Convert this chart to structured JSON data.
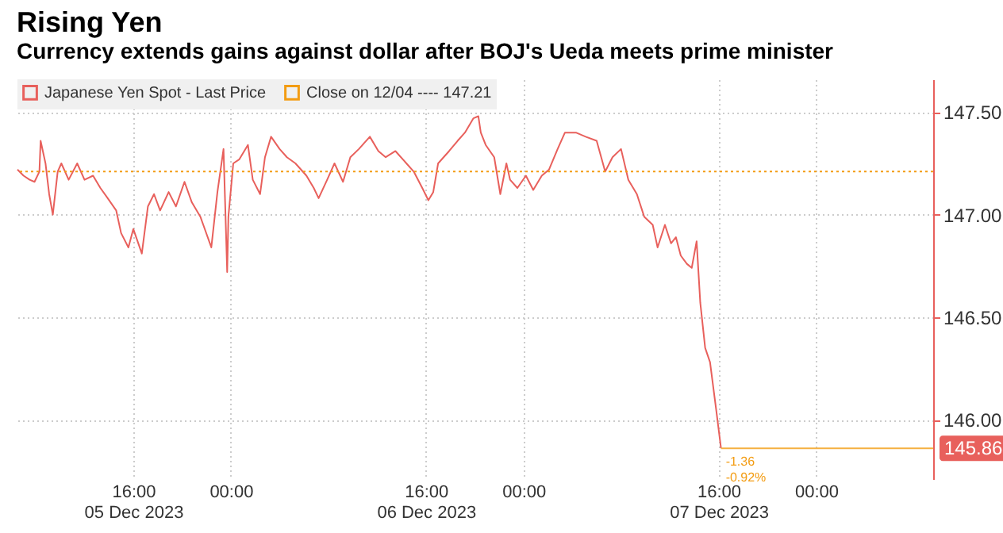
{
  "chart_data": {
    "type": "line",
    "title": "Rising Yen",
    "subtitle": "Currency extends gains against dollar after BOJ's Ueda meets prime minister",
    "x": [
      "2023-12-05T06:30",
      "2023-12-05T07:00",
      "2023-12-05T07:30",
      "2023-12-05T07:54",
      "2023-12-05T08:18",
      "2023-12-05T08:24",
      "2023-12-05T08:48",
      "2023-12-05T09:06",
      "2023-12-05T09:24",
      "2023-12-05T09:48",
      "2023-12-05T10:06",
      "2023-12-05T10:42",
      "2023-12-05T11:24",
      "2023-12-05T12:00",
      "2023-12-05T12:42",
      "2023-12-05T13:18",
      "2023-12-05T13:54",
      "2023-12-05T14:36",
      "2023-12-05T15:00",
      "2023-12-05T15:36",
      "2023-12-05T16:00",
      "2023-12-05T16:42",
      "2023-12-05T17:12",
      "2023-12-05T17:42",
      "2023-12-05T18:12",
      "2023-12-05T18:54",
      "2023-12-05T19:30",
      "2023-12-05T20:12",
      "2023-12-05T20:48",
      "2023-12-05T21:30",
      "2023-12-05T22:24",
      "2023-12-05T22:54",
      "2023-12-05T23:24",
      "2023-12-05T23:42",
      "2023-12-05T23:48",
      "2023-12-06T00:12",
      "2023-12-06T00:42",
      "2023-12-06T01:24",
      "2023-12-06T01:48",
      "2023-12-06T02:24",
      "2023-12-06T02:48",
      "2023-12-06T03:18",
      "2023-12-06T04:00",
      "2023-12-06T04:36",
      "2023-12-06T05:18",
      "2023-12-06T06:12",
      "2023-12-06T06:48",
      "2023-12-06T07:12",
      "2023-12-06T07:54",
      "2023-12-06T08:30",
      "2023-12-06T09:12",
      "2023-12-06T09:48",
      "2023-12-06T10:30",
      "2023-12-06T11:24",
      "2023-12-06T12:06",
      "2023-12-06T12:42",
      "2023-12-06T13:30",
      "2023-12-06T14:24",
      "2023-12-06T15:00",
      "2023-12-06T15:42",
      "2023-12-06T16:12",
      "2023-12-06T16:36",
      "2023-12-06T17:00",
      "2023-12-06T17:54",
      "2023-12-06T18:36",
      "2023-12-06T19:12",
      "2023-12-06T19:54",
      "2023-12-06T20:18",
      "2023-12-06T20:30",
      "2023-12-06T20:54",
      "2023-12-06T21:36",
      "2023-12-06T22:06",
      "2023-12-06T22:36",
      "2023-12-06T22:54",
      "2023-12-06T23:30",
      "2023-12-07T00:12",
      "2023-12-07T00:48",
      "2023-12-07T01:30",
      "2023-12-07T02:06",
      "2023-12-07T02:48",
      "2023-12-07T03:24",
      "2023-12-07T04:18",
      "2023-12-07T05:06",
      "2023-12-07T06:00",
      "2023-12-07T06:42",
      "2023-12-07T07:18",
      "2023-12-07T08:00",
      "2023-12-07T08:36",
      "2023-12-07T09:18",
      "2023-12-07T09:54",
      "2023-12-07T10:36",
      "2023-12-07T11:00",
      "2023-12-07T11:36",
      "2023-12-07T12:06",
      "2023-12-07T12:30",
      "2023-12-07T12:54",
      "2023-12-07T13:24",
      "2023-12-07T13:48",
      "2023-12-07T14:12",
      "2023-12-07T14:30",
      "2023-12-07T14:54",
      "2023-12-07T15:18",
      "2023-12-07T15:48",
      "2023-12-07T16:12"
    ],
    "series": [
      {
        "name": "Japanese Yen Spot - Last Price",
        "color": "#e8605c",
        "values": [
          147.22,
          147.19,
          147.17,
          147.16,
          147.21,
          147.36,
          147.25,
          147.1,
          147.0,
          147.21,
          147.25,
          147.17,
          147.25,
          147.17,
          147.19,
          147.13,
          147.08,
          147.02,
          146.91,
          146.84,
          146.93,
          146.81,
          147.04,
          147.1,
          147.02,
          147.11,
          147.04,
          147.16,
          147.06,
          146.99,
          146.84,
          147.11,
          147.32,
          146.72,
          146.99,
          147.25,
          147.27,
          147.34,
          147.17,
          147.1,
          147.28,
          147.38,
          147.32,
          147.28,
          147.25,
          147.19,
          147.13,
          147.08,
          147.17,
          147.25,
          147.16,
          147.28,
          147.32,
          147.38,
          147.31,
          147.28,
          147.31,
          147.25,
          147.21,
          147.13,
          147.07,
          147.11,
          147.25,
          147.31,
          147.36,
          147.4,
          147.47,
          147.48,
          147.4,
          147.34,
          147.28,
          147.1,
          147.25,
          147.17,
          147.13,
          147.19,
          147.12,
          147.19,
          147.22,
          147.32,
          147.4,
          147.4,
          147.38,
          147.36,
          147.21,
          147.28,
          147.32,
          147.17,
          147.1,
          146.99,
          146.95,
          146.84,
          146.95,
          146.86,
          146.89,
          146.8,
          146.76,
          146.74,
          146.87,
          146.57,
          146.35,
          146.28,
          146.05,
          145.86
        ]
      }
    ],
    "xlim": [
      "2023-12-05T06:30",
      "2023-12-08T09:36"
    ],
    "xticks": [
      {
        "value": "2023-12-05T16:00",
        "label": "16:00\n05 Dec 2023"
      },
      {
        "value": "2023-12-06T00:00",
        "label": "00:00"
      },
      {
        "value": "2023-12-06T16:00",
        "label": "16:00\n06 Dec 2023"
      },
      {
        "value": "2023-12-07T00:00",
        "label": "00:00"
      },
      {
        "value": "2023-12-07T16:00",
        "label": "16:00\n07 Dec 2023"
      },
      {
        "value": "2023-12-08T00:00",
        "label": "00:00"
      }
    ],
    "ylim": [
      145.71,
      147.66
    ],
    "yticks": [
      {
        "value": 146,
        "label": "146.00"
      },
      {
        "value": 146.5,
        "label": "146.50"
      },
      {
        "value": 147,
        "label": "147.00"
      },
      {
        "value": 147.5,
        "label": "147.50"
      }
    ],
    "ref_lines": [
      {
        "axis": "y",
        "value": 147.21,
        "label": "Close on 12/04 ---- 147.21",
        "color": "#f39c12",
        "line_style": "dotted"
      },
      {
        "axis": "y",
        "value": 145.86,
        "label": "145.86",
        "color": "#f5b041",
        "line_style": "solid"
      }
    ],
    "annotations": [
      {
        "text": "-1.36",
        "x": "2023-12-07T16:12",
        "y": 145.86
      },
      {
        "text": "-0.92%",
        "x": "2023-12-07T16:12",
        "y": 145.86
      }
    ],
    "grid": true,
    "legend": "top left"
  }
}
